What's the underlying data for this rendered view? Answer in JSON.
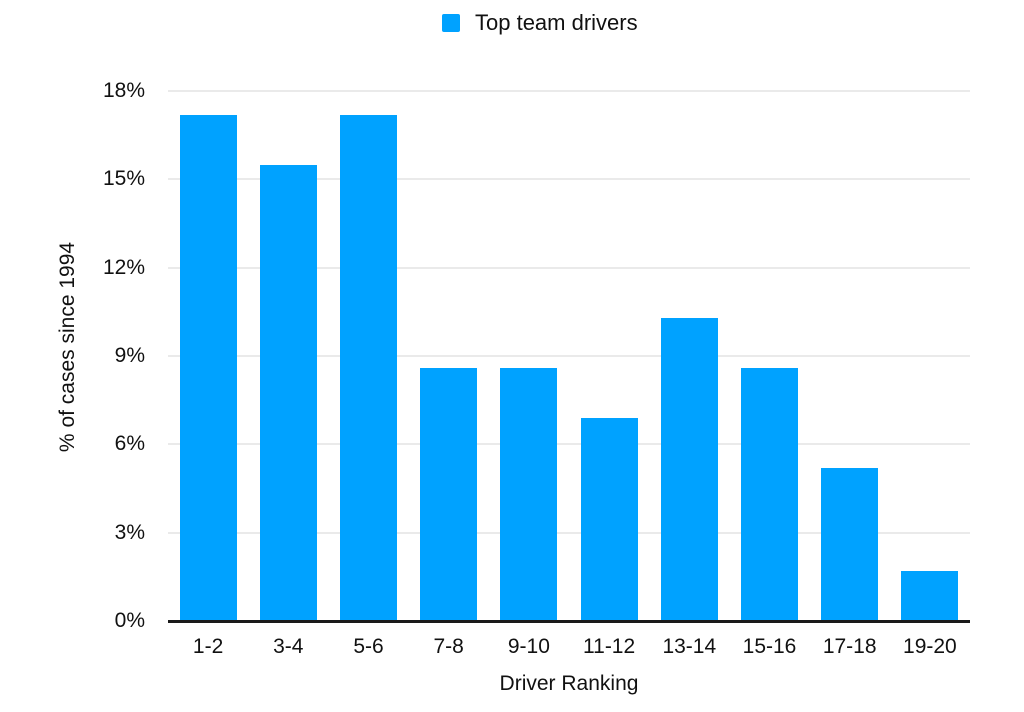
{
  "legend": {
    "label": "Top team drivers",
    "swatch_color": "#00A2FF"
  },
  "chart_data": {
    "type": "bar",
    "title": "",
    "categories": [
      "1-2",
      "3-4",
      "5-6",
      "7-8",
      "9-10",
      "11-12",
      "13-14",
      "15-16",
      "17-18",
      "19-20"
    ],
    "values": [
      17.2,
      15.5,
      17.2,
      8.6,
      8.6,
      6.9,
      10.3,
      8.6,
      5.2,
      1.7
    ],
    "series": [
      {
        "name": "Top team drivers",
        "values": [
          17.2,
          15.5,
          17.2,
          8.6,
          8.6,
          6.9,
          10.3,
          8.6,
          5.2,
          1.7
        ]
      }
    ],
    "xlabel": "Driver Ranking",
    "ylabel": "% of cases since 1994",
    "ylim": [
      0,
      18
    ],
    "yticks": [
      0,
      3,
      6,
      9,
      12,
      15,
      18
    ],
    "ytick_labels": [
      "0%",
      "3%",
      "6%",
      "9%",
      "12%",
      "15%",
      "18%"
    ],
    "bar_color": "#00A2FF",
    "grid": true,
    "gridline_color": "#d6d6d6",
    "axis_color": "#1a1a1a",
    "legend_position": "top-center",
    "background_color": "#ffffff"
  }
}
